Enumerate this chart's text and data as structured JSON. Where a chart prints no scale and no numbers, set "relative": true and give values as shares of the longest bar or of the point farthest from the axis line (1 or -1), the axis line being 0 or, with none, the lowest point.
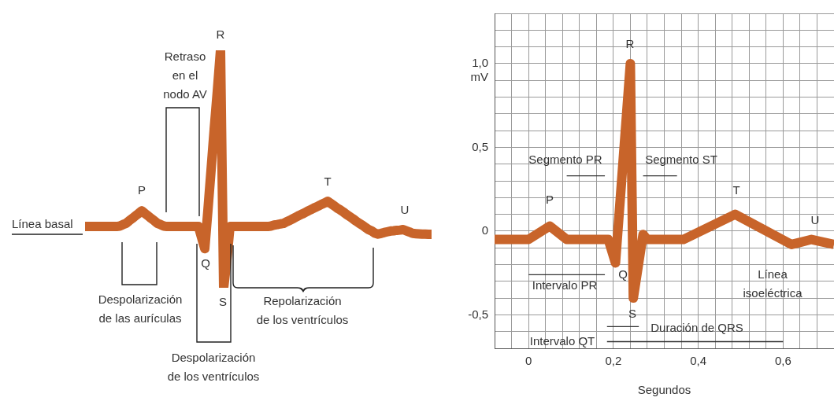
{
  "chart_data": [
    {
      "type": "line",
      "relative": true,
      "tick_labels": false,
      "grid": false,
      "categories": [
        null,
        null,
        null,
        null,
        null,
        null,
        null,
        null,
        null,
        null,
        null,
        null,
        null,
        null,
        null,
        null,
        null,
        null,
        null,
        null,
        null,
        null,
        null,
        null,
        null,
        null,
        null,
        null,
        null,
        null,
        null,
        null,
        null,
        null,
        null,
        null,
        null,
        null,
        null,
        null,
        null,
        null,
        null,
        null,
        null,
        null,
        null,
        null,
        null,
        null,
        null,
        null,
        null,
        null,
        null,
        null,
        null,
        null,
        null,
        null,
        null,
        null,
        null,
        null,
        null,
        null,
        null,
        null,
        null,
        null,
        null,
        null,
        null,
        null,
        null,
        null,
        null,
        null,
        null,
        null,
        null,
        null,
        null,
        null,
        null,
        null,
        null,
        null,
        null,
        null,
        null,
        null,
        null,
        null,
        null,
        null,
        null,
        null,
        null,
        null,
        null,
        null,
        null,
        null,
        null,
        null,
        null,
        null,
        null,
        null,
        null
      ],
      "series": [
        {
          "color": "#c8642a",
          "values": [
            0.258,
            0.258,
            0.258,
            0.258,
            0.258,
            0.258,
            0.258,
            0.258,
            0.258,
            0.258,
            0.258,
            0.26,
            0.266,
            0.271,
            0.282,
            0.292,
            0.303,
            0.313,
            0.324,
            0.313,
            0.303,
            0.292,
            0.282,
            0.271,
            0.266,
            0.26,
            0.258,
            0.258,
            0.258,
            0.258,
            0.258,
            0.258,
            0.258,
            0.258,
            0.258,
            0.258,
            0.258,
            0.212,
            0.165,
            0.326,
            0.496,
            0.667,
            0.829,
            1,
            0,
            0.116,
            0.258,
            0.258,
            0.258,
            0.258,
            0.258,
            0.258,
            0.258,
            0.258,
            0.258,
            0.258,
            0.258,
            0.258,
            0.258,
            0.26,
            0.264,
            0.266,
            0.269,
            0.271,
            0.278,
            0.284,
            0.291,
            0.298,
            0.305,
            0.311,
            0.318,
            0.325,
            0.331,
            0.338,
            0.344,
            0.351,
            0.357,
            0.364,
            0.355,
            0.346,
            0.336,
            0.328,
            0.319,
            0.309,
            0.3,
            0.291,
            0.281,
            0.272,
            0.264,
            0.254,
            0.245,
            0.239,
            0.23,
            0.226,
            0.229,
            0.233,
            0.236,
            0.239,
            0.24,
            0.242,
            0.243,
            0.245,
            0.24,
            0.235,
            0.229,
            0.228,
            0.227,
            0.226,
            0.226,
            0.225,
            0.225
          ]
        }
      ],
      "annotations": [
        "R",
        "Retraso en el nodo AV",
        "P",
        "T",
        "U",
        "Línea basal",
        "Q",
        "S",
        "Despolarización de las aurículas",
        "Despolarización de los ventrículos",
        "Repolarización de los ventrículos"
      ]
    },
    {
      "type": "line",
      "grid": true,
      "xlabel": "Segundos",
      "ylabel": "mV",
      "xlim": [
        -0.08,
        0.72
      ],
      "ylim": [
        -0.7,
        1.3
      ],
      "xticks": [
        {
          "value": -0.08,
          "label": null
        },
        {
          "value": -0.04,
          "label": null
        },
        0,
        {
          "value": 0.04,
          "label": null
        },
        {
          "value": 0.08,
          "label": null
        },
        {
          "value": 0.12,
          "label": null
        },
        {
          "value": 0.16,
          "label": null
        },
        {
          "value": 0.2,
          "label": "0,2"
        },
        {
          "value": 0.24,
          "label": null
        },
        {
          "value": 0.28,
          "label": null
        },
        {
          "value": 0.32,
          "label": null
        },
        {
          "value": 0.36,
          "label": null
        },
        {
          "value": 0.4,
          "label": "0,4"
        },
        {
          "value": 0.44,
          "label": null
        },
        {
          "value": 0.48,
          "label": null
        },
        {
          "value": 0.52,
          "label": null
        },
        {
          "value": 0.56,
          "label": null
        },
        {
          "value": 0.6,
          "label": "0,6"
        },
        {
          "value": 0.64,
          "label": null
        },
        {
          "value": 0.68,
          "label": null
        }
      ],
      "yticks": [
        {
          "value": -0.7,
          "label": null
        },
        {
          "value": -0.6,
          "label": null
        },
        {
          "value": -0.5,
          "label": "-0,5"
        },
        {
          "value": -0.4,
          "label": null
        },
        {
          "value": -0.3,
          "label": null
        },
        {
          "value": -0.2,
          "label": null
        },
        {
          "value": -0.1,
          "label": null
        },
        0,
        {
          "value": 0.1,
          "label": null
        },
        {
          "value": 0.2,
          "label": null
        },
        {
          "value": 0.3,
          "label": null
        },
        {
          "value": 0.4,
          "label": null
        },
        {
          "value": 0.5,
          "label": "0,5"
        },
        {
          "value": 0.6,
          "label": null
        },
        {
          "value": 0.7,
          "label": null
        },
        {
          "value": 0.8,
          "label": null
        },
        {
          "value": 0.9,
          "label": null
        },
        {
          "value": 1.0,
          "label": "1,0"
        },
        {
          "value": 1.1,
          "label": null
        },
        {
          "value": 1.2,
          "label": null
        },
        {
          "value": 1.3,
          "label": null
        }
      ],
      "series": [
        {
          "color": "#c8642a",
          "x": [
            -0.08,
            0,
            0.05,
            0.09,
            0.188,
            0.205,
            0.24,
            0.247,
            0.27,
            0.28,
            0.365,
            0.487,
            0.62,
            0.667,
            0.72
          ],
          "values": [
            -0.05,
            -0.05,
            0.03,
            -0.05,
            -0.05,
            -0.19,
            1.0,
            -0.4,
            -0.02,
            -0.05,
            -0.05,
            0.1,
            -0.08,
            -0.05,
            -0.08
          ]
        },
        {
          "color": "#333333",
          "x": [
            0.09,
            0.18
          ],
          "values": [
            0.33,
            0.33
          ]
        },
        {
          "color": "#333333",
          "x": [
            0.27,
            0.35
          ],
          "values": [
            0.33,
            0.33
          ]
        },
        {
          "color": "#333333",
          "x": [
            0,
            0.18
          ],
          "values": [
            -0.26,
            -0.26
          ]
        },
        {
          "color": "#333333",
          "x": [
            0.185,
            0.26
          ],
          "values": [
            -0.57,
            -0.57
          ]
        },
        {
          "color": "#333333",
          "x": [
            0.185,
            0.6
          ],
          "values": [
            -0.66,
            -0.66
          ]
        }
      ],
      "annotations": [
        "R",
        "P",
        "Q",
        "S",
        "T",
        "U",
        "Segmento PR",
        "Segmento ST",
        "Intervalo PR",
        "Duración de QRS",
        "Intervalo QT",
        "Línea isoeléctrica"
      ]
    }
  ]
}
